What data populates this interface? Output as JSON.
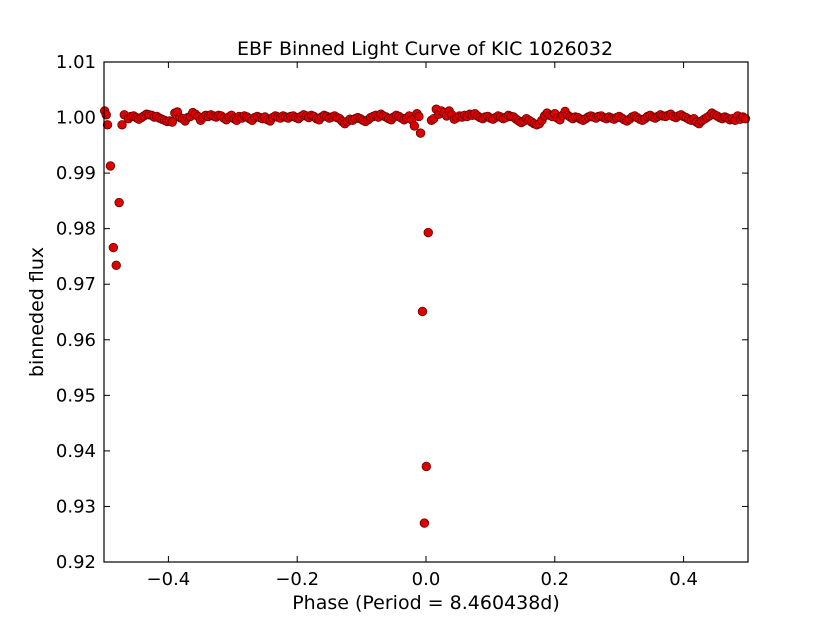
{
  "chart_data": {
    "type": "scatter",
    "title": "EBF Binned Light Curve of KIC 1026032",
    "xlabel": "Phase (Period = 8.460438d)",
    "ylabel": "binneded flux",
    "xlim": [
      -0.5,
      0.5
    ],
    "ylim": [
      0.92,
      1.01
    ],
    "grid": false,
    "legend": "none",
    "marker_color": "#dd0000",
    "marker_edge_color": "#660000",
    "x_ticks": [
      -0.4,
      -0.2,
      0.0,
      0.2,
      0.4
    ],
    "x_tick_labels": [
      "−0.4",
      "−0.2",
      "0.0",
      "0.2",
      "0.4"
    ],
    "y_ticks": [
      0.92,
      0.93,
      0.94,
      0.95,
      0.96,
      0.97,
      0.98,
      0.99,
      1.0,
      1.01
    ],
    "y_tick_labels": [
      "0.92",
      "0.93",
      "0.94",
      "0.95",
      "0.96",
      "0.97",
      "0.98",
      "0.99",
      "1.00",
      "1.01"
    ],
    "series": [
      {
        "points": [
          [
            -0.499,
            1.0012
          ],
          [
            -0.4965,
            1.0005
          ],
          [
            -0.4945,
            0.9987
          ],
          [
            -0.49,
            0.9913
          ],
          [
            -0.4855,
            0.9766
          ],
          [
            -0.481,
            0.9734
          ],
          [
            -0.4765,
            0.9847
          ],
          [
            -0.472,
            0.9987
          ],
          [
            -0.4685,
            1.0005
          ],
          [
            -0.462,
            0.9998
          ],
          [
            -0.458,
            1.0002
          ],
          [
            -0.454,
            1.0003
          ],
          [
            -0.45,
            1.0
          ],
          [
            -0.446,
            0.9997
          ],
          [
            -0.442,
            1.0
          ],
          [
            -0.438,
            1.0003
          ],
          [
            -0.434,
            1.0006
          ],
          [
            -0.43,
            1.0005
          ],
          [
            -0.426,
            1.0004
          ],
          [
            -0.422,
            1.0001
          ],
          [
            -0.418,
            1.0002
          ],
          [
            -0.414,
            0.9999
          ],
          [
            -0.41,
            0.9997
          ],
          [
            -0.406,
            0.9995
          ],
          [
            -0.402,
            0.9993
          ],
          [
            -0.398,
            0.9994
          ],
          [
            -0.394,
            0.9992
          ],
          [
            -0.39,
            1.0008
          ],
          [
            -0.386,
            1.001
          ],
          [
            -0.382,
            1.0
          ],
          [
            -0.378,
            0.9998
          ],
          [
            -0.374,
            0.9994
          ],
          [
            -0.37,
            1.0
          ],
          [
            -0.366,
            1.0002
          ],
          [
            -0.362,
            1.0009
          ],
          [
            -0.358,
            1.0006
          ],
          [
            -0.354,
            1.0002
          ],
          [
            -0.35,
            0.9995
          ],
          [
            -0.346,
            1.0
          ],
          [
            -0.342,
            1.0004
          ],
          [
            -0.338,
            1.0002
          ],
          [
            -0.334,
            1.0005
          ],
          [
            -0.33,
            1.0003
          ],
          [
            -0.326,
            1.0001
          ],
          [
            -0.322,
            1.0004
          ],
          [
            -0.318,
            1.0003
          ],
          [
            -0.314,
            0.9999
          ],
          [
            -0.31,
            0.9996
          ],
          [
            -0.306,
            1.0001
          ],
          [
            -0.302,
            1.0004
          ],
          [
            -0.298,
            0.9998
          ],
          [
            -0.294,
            0.9995
          ],
          [
            -0.29,
            1.0002
          ],
          [
            -0.286,
            0.9999
          ],
          [
            -0.282,
            1.0003
          ],
          [
            -0.278,
            1.0001
          ],
          [
            -0.274,
            0.9998
          ],
          [
            -0.27,
            0.9995
          ],
          [
            -0.266,
            1.0
          ],
          [
            -0.262,
            1.0002
          ],
          [
            -0.258,
            1.0
          ],
          [
            -0.254,
            0.9998
          ],
          [
            -0.25,
            1.0001
          ],
          [
            -0.246,
            0.9996
          ],
          [
            -0.242,
            0.9994
          ],
          [
            -0.238,
            1.0
          ],
          [
            -0.234,
            1.0003
          ],
          [
            -0.23,
            1.0001
          ],
          [
            -0.226,
            0.9999
          ],
          [
            -0.222,
            1.0003
          ],
          [
            -0.218,
            1.0001
          ],
          [
            -0.214,
            0.9999
          ],
          [
            -0.21,
            1.0002
          ],
          [
            -0.206,
            1.0003
          ],
          [
            -0.202,
            1.0
          ],
          [
            -0.198,
            0.9998
          ],
          [
            -0.194,
            1.0002
          ],
          [
            -0.19,
            1.0005
          ],
          [
            -0.186,
            1.0003
          ],
          [
            -0.182,
            1.0
          ],
          [
            -0.178,
            1.0004
          ],
          [
            -0.174,
            1.0002
          ],
          [
            -0.17,
            0.9998
          ],
          [
            -0.166,
            0.9996
          ],
          [
            -0.162,
            1.0001
          ],
          [
            -0.158,
            1.0004
          ],
          [
            -0.154,
            1.0002
          ],
          [
            -0.15,
            0.9999
          ],
          [
            -0.146,
            1.0001
          ],
          [
            -0.142,
            1.0003
          ],
          [
            -0.138,
            1.0
          ],
          [
            -0.134,
            0.9998
          ],
          [
            -0.13,
            0.9993
          ],
          [
            -0.126,
            0.9989
          ],
          [
            -0.122,
            0.9993
          ],
          [
            -0.118,
            0.9997
          ],
          [
            -0.114,
            0.9995
          ],
          [
            -0.11,
            0.9998
          ],
          [
            -0.106,
            1.0
          ],
          [
            -0.102,
            0.9998
          ],
          [
            -0.098,
            0.9995
          ],
          [
            -0.094,
            0.9993
          ],
          [
            -0.09,
            0.9996
          ],
          [
            -0.086,
            1.0
          ],
          [
            -0.082,
            1.0002
          ],
          [
            -0.078,
            1.0004
          ],
          [
            -0.074,
            1.0001
          ],
          [
            -0.07,
            1.0006
          ],
          [
            -0.066,
            1.0003
          ],
          [
            -0.062,
            1.0001
          ],
          [
            -0.058,
            0.9998
          ],
          [
            -0.054,
            0.9996
          ],
          [
            -0.05,
            1.0001
          ],
          [
            -0.046,
            1.0004
          ],
          [
            -0.042,
            1.0002
          ],
          [
            -0.038,
            0.9999
          ],
          [
            -0.034,
            0.9996
          ],
          [
            -0.03,
            0.9999
          ],
          [
            -0.026,
            1.0003
          ],
          [
            -0.022,
            0.9996
          ],
          [
            -0.018,
            0.9985
          ],
          [
            -0.014,
            1.0007
          ],
          [
            -0.011,
            1.0002
          ],
          [
            -0.0085,
            0.9972
          ],
          [
            -0.0055,
            0.9651
          ],
          [
            -0.0025,
            0.927
          ],
          [
            0.0005,
            0.9372
          ],
          [
            0.0035,
            0.9793
          ],
          [
            0.0085,
            0.9995
          ],
          [
            0.012,
            0.9998
          ],
          [
            0.016,
            1.0015
          ],
          [
            0.02,
            1.0006
          ],
          [
            0.024,
            1.0012
          ],
          [
            0.028,
            1.0009
          ],
          [
            0.032,
            1.0003
          ],
          [
            0.036,
            1.0012
          ],
          [
            0.04,
            1.0005
          ],
          [
            0.044,
            0.9997
          ],
          [
            0.048,
            1.0
          ],
          [
            0.052,
            1.0003
          ],
          [
            0.056,
            1.0001
          ],
          [
            0.06,
            1.0004
          ],
          [
            0.064,
            1.0002
          ],
          [
            0.068,
            1.0006
          ],
          [
            0.072,
            1.0004
          ],
          [
            0.076,
            1.0007
          ],
          [
            0.08,
            1.0003
          ],
          [
            0.084,
            1.0
          ],
          [
            0.088,
            0.9998
          ],
          [
            0.092,
            1.0001
          ],
          [
            0.096,
            1.0002
          ],
          [
            0.1,
            0.9999
          ],
          [
            0.104,
            0.9997
          ],
          [
            0.108,
            1.0
          ],
          [
            0.112,
            1.0003
          ],
          [
            0.116,
            1.0001
          ],
          [
            0.12,
            0.9998
          ],
          [
            0.124,
            1.0
          ],
          [
            0.128,
            1.0004
          ],
          [
            0.132,
            1.0002
          ],
          [
            0.136,
            1.0001
          ],
          [
            0.14,
            0.9997
          ],
          [
            0.144,
            0.9994
          ],
          [
            0.148,
            0.9991
          ],
          [
            0.152,
            0.9994
          ],
          [
            0.156,
            0.9998
          ],
          [
            0.16,
            0.9995
          ],
          [
            0.164,
            0.9992
          ],
          [
            0.168,
            0.9989
          ],
          [
            0.172,
            0.9987
          ],
          [
            0.176,
            0.9989
          ],
          [
            0.18,
            0.9995
          ],
          [
            0.184,
            1.0003
          ],
          [
            0.188,
            1.0008
          ],
          [
            0.192,
            1.0004
          ],
          [
            0.196,
            1.0002
          ],
          [
            0.2,
            1.0007
          ],
          [
            0.204,
            0.9999
          ],
          [
            0.208,
            0.9996
          ],
          [
            0.212,
            1.0004
          ],
          [
            0.216,
            1.0011
          ],
          [
            0.22,
            1.0004
          ],
          [
            0.224,
            1.0001
          ],
          [
            0.228,
            0.9998
          ],
          [
            0.232,
            1.0001
          ],
          [
            0.236,
            1.0
          ],
          [
            0.24,
            0.9997
          ],
          [
            0.244,
            0.9995
          ],
          [
            0.248,
            0.9998
          ],
          [
            0.252,
            1.0001
          ],
          [
            0.256,
            1.0003
          ],
          [
            0.26,
            1.0001
          ],
          [
            0.264,
            0.9999
          ],
          [
            0.268,
            1.0002
          ],
          [
            0.272,
            1.0003
          ],
          [
            0.276,
            1.0
          ],
          [
            0.28,
            0.9998
          ],
          [
            0.284,
            1.0001
          ],
          [
            0.288,
            0.9999
          ],
          [
            0.292,
            0.9997
          ],
          [
            0.296,
            1.0
          ],
          [
            0.3,
            1.0002
          ],
          [
            0.304,
            0.9999
          ],
          [
            0.308,
            0.9996
          ],
          [
            0.312,
            0.9994
          ],
          [
            0.316,
            0.9997
          ],
          [
            0.32,
            1.0001
          ],
          [
            0.324,
            1.0003
          ],
          [
            0.328,
            1.0
          ],
          [
            0.332,
            0.9997
          ],
          [
            0.336,
            0.9995
          ],
          [
            0.34,
            0.9998
          ],
          [
            0.344,
            1.0002
          ],
          [
            0.348,
            1.0004
          ],
          [
            0.352,
            1.0001
          ],
          [
            0.356,
            0.9999
          ],
          [
            0.36,
            1.0002
          ],
          [
            0.364,
            1.0005
          ],
          [
            0.368,
            1.0003
          ],
          [
            0.372,
            1.0002
          ],
          [
            0.376,
            1.0004
          ],
          [
            0.38,
            1.0006
          ],
          [
            0.384,
            1.0002
          ],
          [
            0.388,
            1.0
          ],
          [
            0.392,
            1.0003
          ],
          [
            0.396,
            1.0005
          ],
          [
            0.4,
            1.0002
          ],
          [
            0.404,
            1.0
          ],
          [
            0.408,
            0.9997
          ],
          [
            0.412,
            0.9995
          ],
          [
            0.416,
            0.9998
          ],
          [
            0.42,
            0.9992
          ],
          [
            0.424,
            0.9989
          ],
          [
            0.428,
            0.9994
          ],
          [
            0.432,
            0.9997
          ],
          [
            0.436,
            1.0
          ],
          [
            0.44,
            1.0003
          ],
          [
            0.444,
            1.0008
          ],
          [
            0.448,
            1.0005
          ],
          [
            0.452,
            1.0003
          ],
          [
            0.456,
            1.0
          ],
          [
            0.46,
            0.9998
          ],
          [
            0.464,
            1.0001
          ],
          [
            0.468,
            0.9999
          ],
          [
            0.472,
            0.9996
          ],
          [
            0.476,
            0.9998
          ],
          [
            0.48,
            0.9995
          ],
          [
            0.484,
            1.0003
          ],
          [
            0.488,
            0.9997
          ],
          [
            0.492,
            1.0001
          ],
          [
            0.496,
            0.9998
          ]
        ]
      }
    ]
  }
}
